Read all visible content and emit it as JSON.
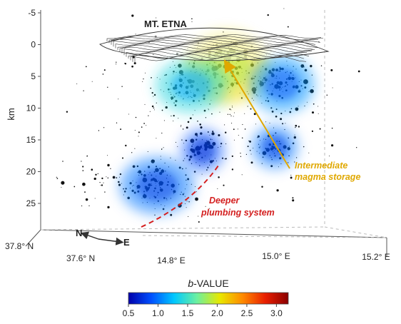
{
  "chart_data": {
    "type": "scatter",
    "title": "MT. ETNA",
    "z_axis": {
      "label": "km",
      "ticks": [
        "-5",
        "0",
        "5",
        "10",
        "15",
        "20",
        "25"
      ],
      "range": [
        -5,
        28
      ]
    },
    "x_axis": {
      "ticks": [
        "14.8° E",
        "15.0° E",
        "15.2° E"
      ]
    },
    "y_axis": {
      "ticks": [
        "37.8° N",
        "37.6° N"
      ]
    },
    "compass": {
      "north": "N",
      "east": "E"
    },
    "colorbar": {
      "title_italic": "b",
      "title_rest": "-VALUE",
      "ticks": [
        "0.5",
        "1.0",
        "1.5",
        "2.0",
        "2.5",
        "3.0"
      ],
      "range": [
        0.5,
        3.2
      ],
      "colors": [
        "#0000aa",
        "#0050ff",
        "#00c8ff",
        "#6cf0a0",
        "#e8e800",
        "#ff8a00",
        "#e81e00",
        "#8a0000"
      ]
    },
    "annotations": [
      {
        "text_lines": [
          "Intermediate",
          "magma storage"
        ],
        "color": "#e0a800"
      },
      {
        "text_lines": [
          "Deeper",
          "plumbing system"
        ],
        "color": "#d42020"
      }
    ],
    "b_value_clusters": [
      {
        "region": "summit",
        "b": 2.1
      },
      {
        "region": "upper-west",
        "b": 1.4
      },
      {
        "region": "upper-east",
        "b": 1.1
      },
      {
        "region": "mid-central",
        "b": 0.9
      },
      {
        "region": "mid-east",
        "b": 1.0
      },
      {
        "region": "deep-west",
        "b": 1.0
      }
    ]
  }
}
